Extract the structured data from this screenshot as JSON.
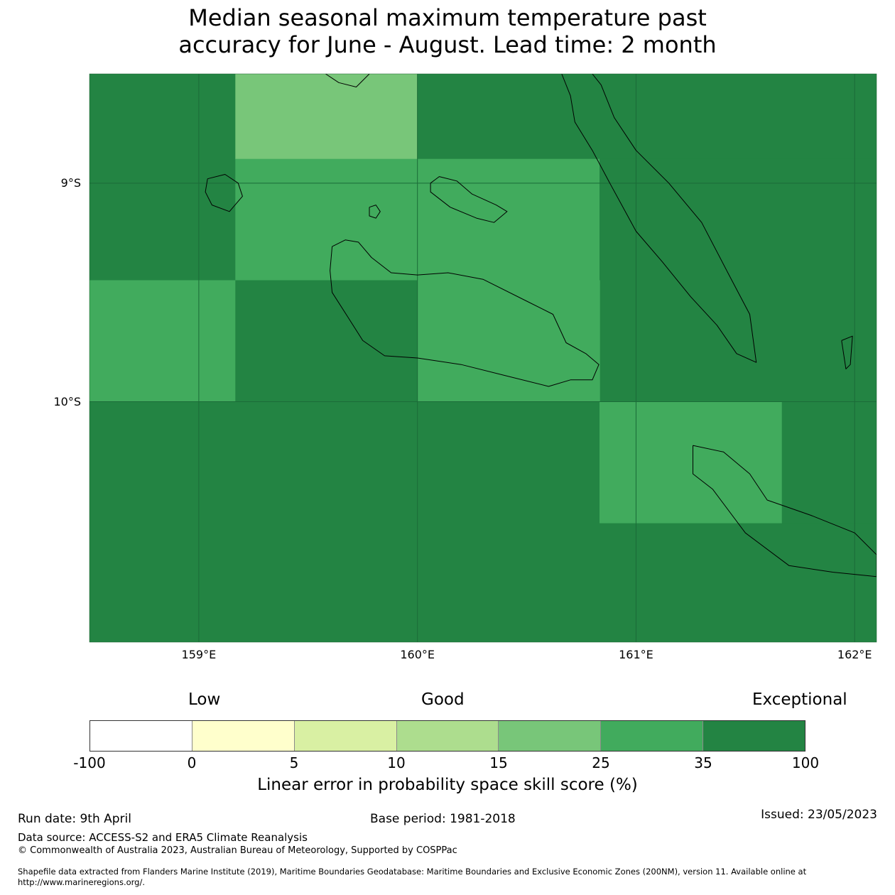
{
  "title": {
    "line1": "Median seasonal maximum temperature past",
    "line2": "accuracy for June - August. Lead time: 2 month"
  },
  "map": {
    "lon_range": [
      158.5,
      162.1
    ],
    "lat_range": [
      -8.5,
      -11.1
    ],
    "lat_ticks": [
      {
        "value": -9,
        "label": "9°S"
      },
      {
        "value": -10,
        "label": "10°S"
      }
    ],
    "lon_ticks": [
      {
        "value": 159,
        "label": "159°E"
      },
      {
        "value": 160,
        "label": "160°E"
      },
      {
        "value": 161,
        "label": "161°E"
      },
      {
        "value": 162,
        "label": "162°E"
      }
    ],
    "cells": [
      {
        "lon": [
          158.5,
          159.167
        ],
        "lat": [
          -8.5,
          -9.444
        ],
        "category": "35-100"
      },
      {
        "lon": [
          159.167,
          160.0
        ],
        "lat": [
          -8.5,
          -8.889
        ],
        "category": "15-25"
      },
      {
        "lon": [
          160.0,
          162.1
        ],
        "lat": [
          -8.5,
          -8.889
        ],
        "category": "35-100"
      },
      {
        "lon": [
          159.167,
          160.0
        ],
        "lat": [
          -8.889,
          -9.444
        ],
        "category": "25-35"
      },
      {
        "lon": [
          160.0,
          160.833
        ],
        "lat": [
          -8.889,
          -9.444
        ],
        "category": "25-35"
      },
      {
        "lon": [
          160.833,
          162.1
        ],
        "lat": [
          -8.889,
          -10.0
        ],
        "category": "35-100"
      },
      {
        "lon": [
          158.5,
          159.167
        ],
        "lat": [
          -9.444,
          -10.0
        ],
        "category": "25-35"
      },
      {
        "lon": [
          159.167,
          160.0
        ],
        "lat": [
          -9.444,
          -10.0
        ],
        "category": "35-100"
      },
      {
        "lon": [
          160.0,
          160.833
        ],
        "lat": [
          -9.444,
          -10.0
        ],
        "category": "25-35"
      },
      {
        "lon": [
          158.5,
          160.833
        ],
        "lat": [
          -10.0,
          -11.1
        ],
        "category": "35-100"
      },
      {
        "lon": [
          160.833,
          161.667
        ],
        "lat": [
          -10.0,
          -10.556
        ],
        "category": "25-35"
      },
      {
        "lon": [
          161.667,
          162.1
        ],
        "lat": [
          -10.0,
          -10.556
        ],
        "category": "35-100"
      },
      {
        "lon": [
          160.833,
          162.1
        ],
        "lat": [
          -10.556,
          -11.1
        ],
        "category": "35-100"
      }
    ],
    "coastlines": [
      {
        "name": "guadalcanal",
        "points": [
          [
            159.61,
            -9.29
          ],
          [
            159.67,
            -9.26
          ],
          [
            159.73,
            -9.27
          ],
          [
            159.79,
            -9.34
          ],
          [
            159.88,
            -9.41
          ],
          [
            160.0,
            -9.42
          ],
          [
            160.14,
            -9.41
          ],
          [
            160.3,
            -9.44
          ],
          [
            160.5,
            -9.54
          ],
          [
            160.62,
            -9.6
          ],
          [
            160.68,
            -9.73
          ],
          [
            160.77,
            -9.78
          ],
          [
            160.83,
            -9.83
          ],
          [
            160.8,
            -9.9
          ],
          [
            160.7,
            -9.9
          ],
          [
            160.6,
            -9.93
          ],
          [
            160.4,
            -9.88
          ],
          [
            160.2,
            -9.83
          ],
          [
            160.0,
            -9.8
          ],
          [
            159.85,
            -9.79
          ],
          [
            159.75,
            -9.72
          ],
          [
            159.68,
            -9.61
          ],
          [
            159.61,
            -9.5
          ],
          [
            159.6,
            -9.4
          ],
          [
            159.61,
            -9.29
          ]
        ]
      },
      {
        "name": "florida-islands",
        "points": [
          [
            160.06,
            -9.0
          ],
          [
            160.1,
            -8.97
          ],
          [
            160.18,
            -8.99
          ],
          [
            160.25,
            -9.05
          ],
          [
            160.36,
            -9.1
          ],
          [
            160.41,
            -9.13
          ],
          [
            160.35,
            -9.18
          ],
          [
            160.27,
            -9.16
          ],
          [
            160.15,
            -9.11
          ],
          [
            160.06,
            -9.04
          ],
          [
            160.06,
            -9.0
          ]
        ]
      },
      {
        "name": "savo",
        "points": [
          [
            159.78,
            -9.11
          ],
          [
            159.81,
            -9.1
          ],
          [
            159.83,
            -9.13
          ],
          [
            159.81,
            -9.16
          ],
          [
            159.78,
            -9.15
          ],
          [
            159.78,
            -9.11
          ]
        ]
      },
      {
        "name": "malaita",
        "points": [
          [
            160.66,
            -8.5
          ],
          [
            160.7,
            -8.6
          ],
          [
            160.72,
            -8.72
          ],
          [
            160.8,
            -8.85
          ],
          [
            160.88,
            -9.0
          ],
          [
            161.0,
            -9.22
          ],
          [
            161.12,
            -9.36
          ],
          [
            161.25,
            -9.52
          ],
          [
            161.37,
            -9.65
          ],
          [
            161.46,
            -9.78
          ],
          [
            161.55,
            -9.82
          ],
          [
            161.52,
            -9.6
          ],
          [
            161.42,
            -9.41
          ],
          [
            161.3,
            -9.18
          ],
          [
            161.15,
            -9.0
          ],
          [
            161.0,
            -8.85
          ],
          [
            160.9,
            -8.7
          ],
          [
            160.84,
            -8.55
          ],
          [
            160.8,
            -8.5
          ]
        ]
      },
      {
        "name": "makira",
        "points": [
          [
            161.26,
            -10.2
          ],
          [
            161.4,
            -10.23
          ],
          [
            161.52,
            -10.33
          ],
          [
            161.6,
            -10.45
          ],
          [
            161.8,
            -10.52
          ],
          [
            162.0,
            -10.6
          ],
          [
            162.1,
            -10.7
          ],
          [
            162.1,
            -10.8
          ],
          [
            161.9,
            -10.78
          ],
          [
            161.7,
            -10.75
          ],
          [
            161.5,
            -10.6
          ],
          [
            161.35,
            -10.4
          ],
          [
            161.26,
            -10.33
          ],
          [
            161.26,
            -10.2
          ]
        ]
      },
      {
        "name": "ulawa",
        "points": [
          [
            161.94,
            -9.72
          ],
          [
            161.99,
            -9.7
          ],
          [
            161.98,
            -9.83
          ],
          [
            161.96,
            -9.85
          ],
          [
            161.94,
            -9.72
          ]
        ]
      },
      {
        "name": "russell-islands",
        "points": [
          [
            159.04,
            -8.98
          ],
          [
            159.12,
            -8.96
          ],
          [
            159.18,
            -9.0
          ],
          [
            159.2,
            -9.06
          ],
          [
            159.14,
            -9.13
          ],
          [
            159.06,
            -9.1
          ],
          [
            159.03,
            -9.04
          ],
          [
            159.04,
            -8.98
          ]
        ]
      },
      {
        "name": "new-georgia-tip",
        "points": [
          [
            159.58,
            -8.5
          ],
          [
            159.64,
            -8.54
          ],
          [
            159.72,
            -8.56
          ],
          [
            159.78,
            -8.5
          ]
        ]
      }
    ]
  },
  "colorbar": {
    "words": [
      "Low",
      "Good",
      "Exceptional"
    ],
    "ticks": [
      "-100",
      "0",
      "5",
      "10",
      "15",
      "25",
      "35",
      "100"
    ],
    "segments": [
      {
        "range": "-100-0",
        "color": "#ffffff"
      },
      {
        "range": "0-5",
        "color": "#ffffcc"
      },
      {
        "range": "5-10",
        "color": "#d9f0a3"
      },
      {
        "range": "10-15",
        "color": "#addd8e"
      },
      {
        "range": "15-25",
        "color": "#78c679"
      },
      {
        "range": "25-35",
        "color": "#41ab5d"
      },
      {
        "range": "35-100",
        "color": "#238443"
      }
    ],
    "label": "Linear error in probability space skill score (%)"
  },
  "footer": {
    "run_date": "Run date: 9th April",
    "base_period": "Base period: 1981-2018",
    "issued": "Issued: 23/05/2023",
    "data_source": "Data source: ACCESS-S2 and ERA5 Climate Reanalysis",
    "copyright": "© Commonwealth of Australia 2023, Australian Bureau of Meteorology, Supported by COSPPac",
    "shapefile": "Shapefile data extracted from Flanders Marine Institute (2019), Maritime Boundaries Geodatabase: Maritime Boundaries and Exclusive Economic Zones (200NM), version 11. Available online at http://www.marineregions.org/."
  }
}
